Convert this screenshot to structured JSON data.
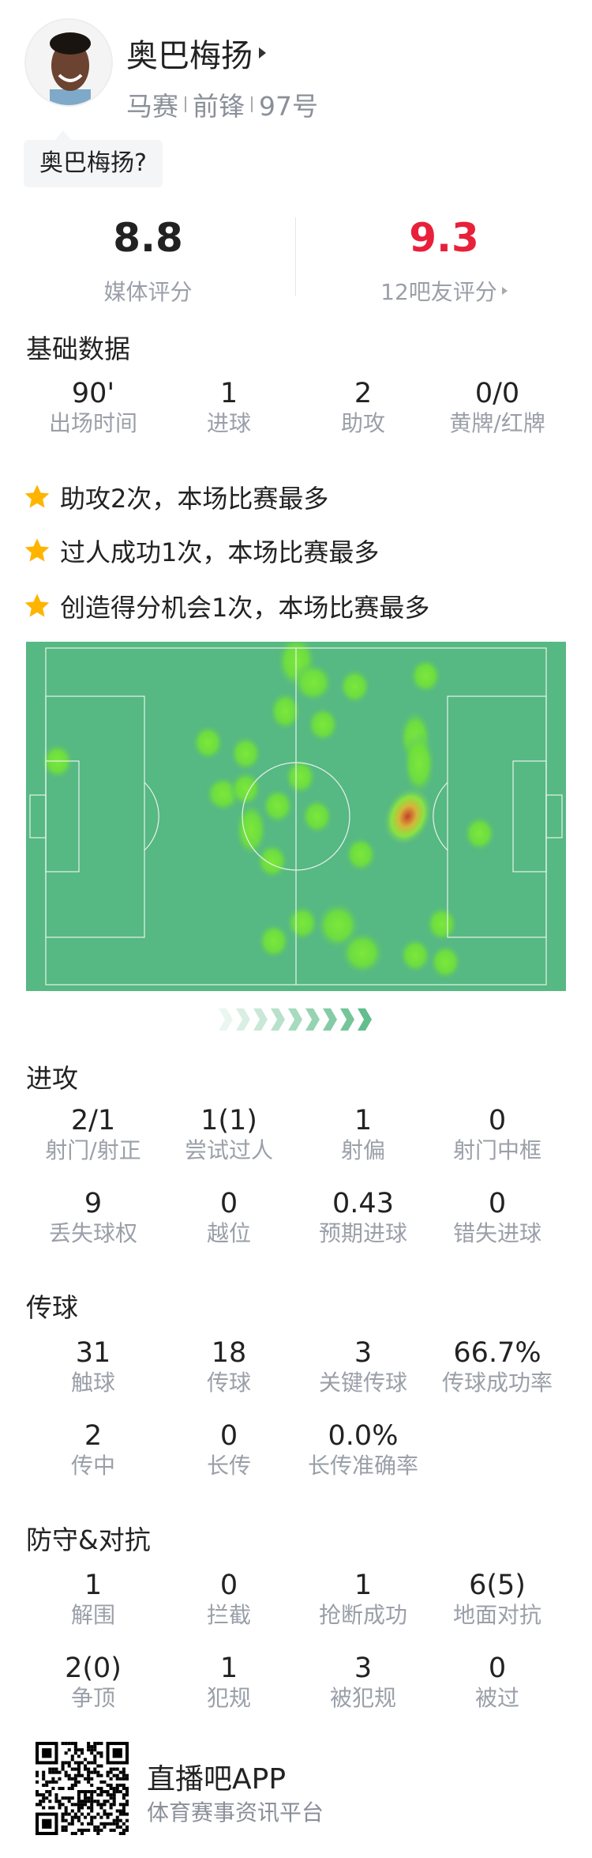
{
  "player": {
    "name": "奥巴梅扬",
    "team": "马赛",
    "position": "前锋",
    "number": "97号",
    "bubble": "奥巴梅扬?"
  },
  "ratings": {
    "media": {
      "value": "8.8",
      "label": "媒体评分"
    },
    "fans": {
      "value": "9.3",
      "label": "12吧友评分",
      "color": "#e8203a"
    }
  },
  "basic": {
    "title": "基础数据",
    "stats": [
      {
        "value": "90'",
        "label": "出场时间"
      },
      {
        "value": "1",
        "label": "进球"
      },
      {
        "value": "2",
        "label": "助攻"
      },
      {
        "value": "0/0",
        "label": "黄牌/红牌"
      }
    ]
  },
  "highlights": [
    "助攻2次，本场比赛最多",
    "过人成功1次，本场比赛最多",
    "创造得分机会1次，本场比赛最多"
  ],
  "attack": {
    "title": "进攻",
    "stats": [
      {
        "value": "2/1",
        "label": "射门/射正"
      },
      {
        "value": "1(1)",
        "label": "尝试过人"
      },
      {
        "value": "1",
        "label": "射偏"
      },
      {
        "value": "0",
        "label": "射门中框"
      },
      {
        "value": "9",
        "label": "丢失球权"
      },
      {
        "value": "0",
        "label": "越位"
      },
      {
        "value": "0.43",
        "label": "预期进球"
      },
      {
        "value": "0",
        "label": "错失进球"
      }
    ]
  },
  "passing": {
    "title": "传球",
    "stats": [
      {
        "value": "31",
        "label": "触球"
      },
      {
        "value": "18",
        "label": "传球"
      },
      {
        "value": "3",
        "label": "关键传球"
      },
      {
        "value": "66.7%",
        "label": "传球成功率"
      },
      {
        "value": "2",
        "label": "传中"
      },
      {
        "value": "0",
        "label": "长传"
      },
      {
        "value": "0.0%",
        "label": "长传准确率"
      }
    ]
  },
  "defense": {
    "title": "防守&对抗",
    "stats": [
      {
        "value": "1",
        "label": "解围"
      },
      {
        "value": "0",
        "label": "拦截"
      },
      {
        "value": "1",
        "label": "抢断成功"
      },
      {
        "value": "6(5)",
        "label": "地面对抗"
      },
      {
        "value": "2(0)",
        "label": "争顶"
      },
      {
        "value": "1",
        "label": "犯规"
      },
      {
        "value": "3",
        "label": "被犯规"
      },
      {
        "value": "0",
        "label": "被过"
      }
    ]
  },
  "footer": {
    "app": "直播吧APP",
    "tagline": "体育赛事资讯平台"
  },
  "colors": {
    "pitch": "#56b883",
    "star": "#ffb400",
    "heat_low": "#6ee83a",
    "heat_high": "#d0452a"
  }
}
